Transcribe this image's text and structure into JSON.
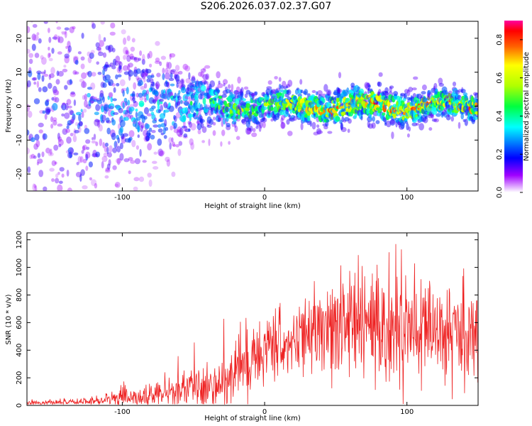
{
  "title": "S206.2026.037.02.37.G07",
  "chart_data": [
    {
      "type": "heatmap",
      "xlabel": "Height of straight line (km)",
      "ylabel": "Frequency (Hz)",
      "xlim": [
        -167,
        150
      ],
      "ylim": [
        -25,
        25
      ],
      "xticks": [
        -100,
        0,
        100
      ],
      "yticks": [
        -20,
        -10,
        0,
        10,
        20
      ],
      "colorbar": {
        "label": "Normalized spectral amplitude",
        "range": [
          0,
          0.9
        ],
        "ticks": [
          0.0,
          0.2,
          0.4,
          0.6,
          0.8
        ]
      },
      "description_points": [
        {
          "x": -160,
          "spread": 25,
          "peak": 0.25
        },
        {
          "x": -120,
          "spread": 20,
          "peak": 0.3
        },
        {
          "x": -100,
          "spread": 12,
          "peak": 0.35
        },
        {
          "x": -80,
          "spread": 10,
          "peak": 0.38
        },
        {
          "x": -50,
          "spread": 6,
          "peak": 0.45
        },
        {
          "x": -30,
          "spread": 4,
          "peak": 0.55
        },
        {
          "x": 0,
          "spread": 3,
          "peak": 0.65
        },
        {
          "x": 40,
          "spread": 3,
          "peak": 0.8
        },
        {
          "x": 80,
          "spread": 3,
          "peak": 0.85
        },
        {
          "x": 120,
          "spread": 2.5,
          "peak": 0.8
        },
        {
          "x": 150,
          "spread": 2.5,
          "peak": 0.85
        }
      ]
    },
    {
      "type": "line",
      "xlabel": "Height of straight line (km)",
      "ylabel": "SNR (10 * v/v)",
      "xlim": [
        -167,
        150
      ],
      "ylim": [
        0,
        1250
      ],
      "xticks": [
        -100,
        0,
        100
      ],
      "yticks": [
        0,
        200,
        400,
        600,
        800,
        1000,
        1200
      ],
      "series": [
        {
          "name": "SNR",
          "color": "#ee2222",
          "x": [
            -167,
            -150,
            -130,
            -115,
            -100,
            -90,
            -80,
            -70,
            -60,
            -50,
            -40,
            -30,
            -20,
            -10,
            0,
            10,
            20,
            30,
            40,
            50,
            60,
            70,
            80,
            90,
            100,
            110,
            120,
            130,
            140,
            150
          ],
          "mean": [
            20,
            20,
            25,
            35,
            50,
            60,
            70,
            85,
            100,
            120,
            150,
            200,
            260,
            330,
            380,
            430,
            470,
            500,
            520,
            540,
            550,
            560,
            570,
            560,
            550,
            540,
            530,
            520,
            510,
            510
          ],
          "noise": [
            15,
            15,
            20,
            40,
            60,
            70,
            80,
            100,
            120,
            140,
            170,
            200,
            220,
            230,
            230,
            230,
            240,
            260,
            300,
            340,
            380,
            400,
            420,
            400,
            380,
            360,
            340,
            320,
            300,
            290
          ]
        }
      ]
    }
  ]
}
